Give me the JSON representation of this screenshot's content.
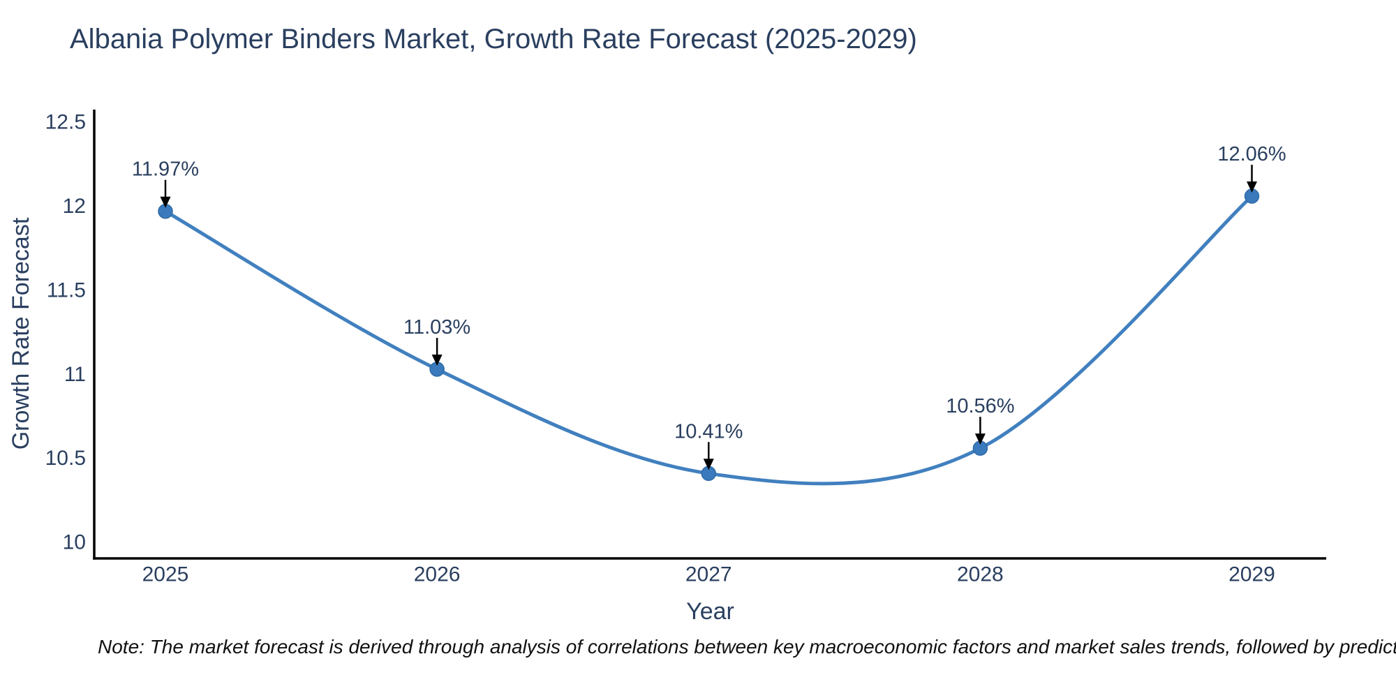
{
  "chart_data": {
    "type": "line",
    "title": "Albania Polymer Binders Market, Growth Rate Forecast (2025-2029)",
    "xlabel": "Year",
    "ylabel": "Growth Rate Forecast",
    "categories": [
      "2025",
      "2026",
      "2027",
      "2028",
      "2029"
    ],
    "series": [
      {
        "name": "Growth Rate Forecast",
        "values": [
          11.97,
          11.03,
          10.41,
          10.56,
          12.06
        ],
        "point_labels": [
          "11.97%",
          "11.03%",
          "10.41%",
          "10.56%",
          "12.06%"
        ]
      }
    ],
    "y_ticks": [
      {
        "value": 10,
        "label": "10"
      },
      {
        "value": 10.5,
        "label": "10.5"
      },
      {
        "value": 11,
        "label": "11"
      },
      {
        "value": 11.5,
        "label": "11.5"
      },
      {
        "value": 12,
        "label": "12"
      },
      {
        "value": 12.5,
        "label": "12.5"
      }
    ],
    "ylim": [
      9.9,
      12.6
    ],
    "grid": false,
    "legend_position": "none",
    "line_shape": "spline",
    "annotations_have_arrows": true,
    "colors": {
      "line": "#4180bf",
      "marker": "#3a7abc",
      "marker_edge": "#2f6ba6",
      "axis": "#000000",
      "tick_text": "#2a3f5f",
      "annotation_text": "#2a3f5f",
      "arrow": "#000000",
      "note_text": "#111111",
      "background": "#ffffff"
    }
  },
  "note": {
    "text": "Note: The market forecast is derived through analysis of correlations between key macroeconomic factors and market sales trends, followed by predictive modeling to project future sal"
  }
}
